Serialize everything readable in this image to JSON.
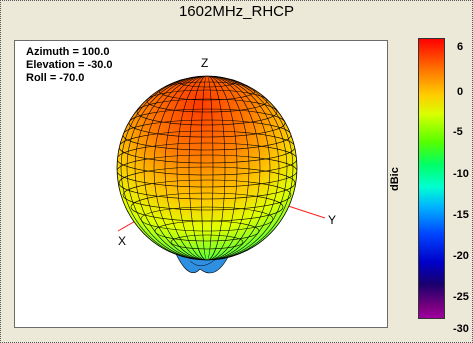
{
  "window": {
    "title": "1602MHz_RHCP"
  },
  "orientation": {
    "azimuth": "Azimuth = 100.0",
    "elevation": "Elevation = -30.0",
    "roll": "Roll = -70.0"
  },
  "axes": {
    "z": "Z",
    "x": "X",
    "y": "Y"
  },
  "colorbar": {
    "label": "dBic",
    "ticks": [
      "6",
      "0",
      "-5",
      "-10",
      "-15",
      "-20",
      "-25",
      "-30"
    ],
    "colors": [
      "#ff0000",
      "#ff6a00",
      "#ffcc00",
      "#55ff00",
      "#00ffd0",
      "#0044ff",
      "#1a006e",
      "#a000a0"
    ]
  }
}
